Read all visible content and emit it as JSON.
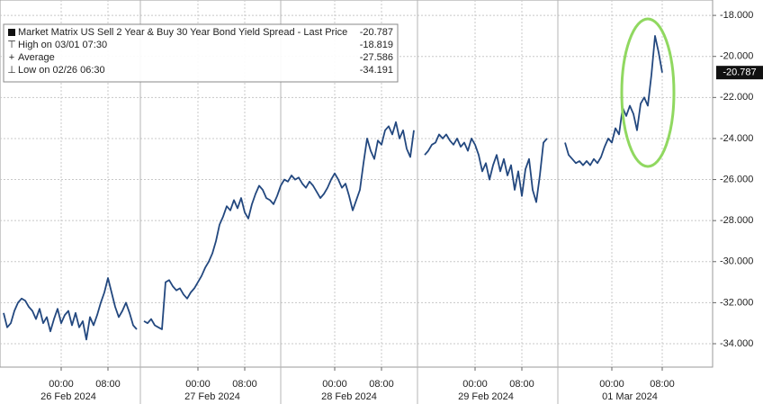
{
  "chart_data": {
    "type": "line",
    "legend": [
      {
        "label": "Market Matrix US Sell 2 Year & Buy 30 Year Bond Yield Spread - Last Price",
        "value": -20.787
      },
      {
        "label": "High on 03/01 07:30",
        "value": -18.819
      },
      {
        "label": "Average",
        "value": -27.586
      },
      {
        "label": "Low on 02/26 06:30",
        "value": -34.191
      }
    ],
    "x": [
      1,
      2,
      3,
      4,
      5,
      6,
      7,
      8,
      9,
      10,
      11,
      12,
      13,
      14,
      15,
      16,
      17,
      18,
      19,
      20,
      21,
      22,
      23,
      24,
      25,
      26,
      27,
      28,
      29,
      30,
      31,
      32,
      33,
      34,
      35,
      36,
      37,
      38,
      39,
      40,
      41,
      42,
      43,
      44,
      45,
      46,
      47,
      48,
      49,
      50,
      51,
      52,
      53,
      54,
      55,
      56,
      57,
      58,
      59,
      60,
      61,
      62,
      63,
      64,
      65,
      66,
      67,
      68,
      69,
      70,
      71,
      72,
      73,
      74,
      75,
      76,
      77,
      78,
      79,
      80,
      81,
      82,
      83,
      84,
      85,
      86,
      87,
      88,
      89,
      90,
      91,
      92,
      93,
      94,
      95,
      96,
      97,
      98,
      99,
      100,
      101,
      102,
      103,
      104,
      105,
      106,
      107,
      108,
      109,
      110,
      111,
      112,
      113,
      114,
      115,
      116,
      117,
      118,
      119,
      120,
      121,
      122,
      123,
      124,
      125,
      126,
      127,
      128,
      129,
      130,
      131,
      132,
      133,
      134,
      135,
      136,
      137,
      138,
      139,
      140,
      141,
      142,
      143,
      144,
      145,
      146,
      147,
      148,
      149,
      150,
      151,
      152,
      153,
      154,
      155,
      156,
      157,
      158,
      159,
      160,
      161,
      162,
      163,
      164,
      165,
      166,
      167,
      168,
      169,
      170,
      171,
      172,
      173,
      174,
      175,
      176,
      177,
      178,
      179,
      180,
      181,
      182,
      183,
      184
    ],
    "series": [
      {
        "color": "#23487f",
        "values": [
          -32.5,
          -33.2,
          -33.0,
          -32.4,
          -32.0,
          -31.8,
          -31.9,
          -32.2,
          -32.4,
          -32.8,
          -32.3,
          -33.0,
          -32.7,
          -33.4,
          -32.8,
          -32.3,
          -33.0,
          -32.6,
          -32.4,
          -33.1,
          -32.5,
          -33.2,
          -32.9,
          -33.8,
          -32.7,
          -33.1,
          -32.6,
          -32.0,
          -31.5,
          -30.8,
          -31.5,
          -32.2,
          -32.7,
          -32.4,
          -32.0,
          -32.5,
          -33.1,
          -33.3,
          null,
          -32.9,
          -33.0,
          -32.8,
          -33.1,
          -33.2,
          -33.3,
          -31.0,
          -30.9,
          -31.2,
          -31.4,
          -31.3,
          -31.6,
          -31.8,
          -31.5,
          -31.3,
          -31.0,
          -30.7,
          -30.3,
          -30.0,
          -29.6,
          -29.0,
          -28.2,
          -27.8,
          -27.3,
          -27.5,
          -27.0,
          -27.4,
          -26.9,
          -27.6,
          -27.9,
          -27.2,
          -26.7,
          -26.3,
          -26.5,
          -26.9,
          -27.0,
          -27.2,
          -26.8,
          -26.3,
          -26.0,
          -26.1,
          -25.8,
          -26.0,
          -25.9,
          -26.2,
          -26.4,
          -26.1,
          -26.3,
          -26.6,
          -26.9,
          -26.7,
          -26.4,
          -26.0,
          -25.7,
          -26.0,
          -26.4,
          -26.2,
          -26.8,
          -27.5,
          -27.0,
          -26.5,
          -25.2,
          -24.0,
          -24.6,
          -25.0,
          -24.1,
          -24.3,
          -23.6,
          -23.4,
          -23.8,
          -23.2,
          -24.0,
          -23.6,
          -24.5,
          -24.9,
          -23.6,
          null,
          null,
          -24.8,
          -24.6,
          -24.3,
          -24.2,
          -23.8,
          -24.0,
          -23.8,
          -24.1,
          -24.3,
          -24.0,
          -24.4,
          -24.2,
          -24.6,
          -24.0,
          -24.3,
          -24.8,
          -25.6,
          -25.2,
          -26.0,
          -25.3,
          -24.8,
          -25.6,
          -25.0,
          -25.8,
          -25.3,
          -26.5,
          -25.6,
          -26.8,
          -25.5,
          -25.0,
          -26.5,
          -27.1,
          -25.8,
          -24.2,
          -24.0,
          null,
          null,
          null,
          null,
          -24.2,
          -24.8,
          -25.0,
          -25.2,
          -25.1,
          -25.3,
          -25.1,
          -25.3,
          -25.0,
          -25.2,
          -24.9,
          -24.4,
          -24.0,
          -24.2,
          -23.5,
          -23.8,
          -22.5,
          -22.9,
          -22.4,
          -22.8,
          -23.6,
          -22.3,
          -22.0,
          -22.4,
          -20.9,
          -19.0,
          -19.8,
          -20.787
        ]
      }
    ],
    "xlim": [
      0,
      198
    ],
    "xticks": [
      {
        "value": 17,
        "label": "00:00"
      },
      {
        "value": 30,
        "label": "08:00"
      },
      {
        "value": 55,
        "label": "00:00"
      },
      {
        "value": 68,
        "label": "08:00"
      },
      {
        "value": 93,
        "label": "00:00"
      },
      {
        "value": 106,
        "label": "08:00"
      },
      {
        "value": 132,
        "label": "00:00"
      },
      {
        "value": 145,
        "label": "08:00"
      },
      {
        "value": 170,
        "label": "00:00"
      },
      {
        "value": 184,
        "label": "08:00"
      }
    ],
    "xgroups": [
      {
        "value": 19,
        "label": "26 Feb 2024"
      },
      {
        "value": 59,
        "label": "27 Feb 2024"
      },
      {
        "value": 97,
        "label": "28 Feb 2024"
      },
      {
        "value": 135,
        "label": "29 Feb 2024"
      },
      {
        "value": 175,
        "label": "01 Mar 2024"
      }
    ],
    "ylim": [
      -35.14,
      -17.25
    ],
    "yticks": [
      {
        "value": -18,
        "label": "-18.000"
      },
      {
        "value": -20,
        "label": "-20.000"
      },
      {
        "value": -22,
        "label": "-22.000"
      },
      {
        "value": -24,
        "label": "-24.000"
      },
      {
        "value": -26,
        "label": "-26.000"
      },
      {
        "value": -28,
        "label": "-28.000"
      },
      {
        "value": -30,
        "label": "-30.000"
      },
      {
        "value": -32,
        "label": "-32.000"
      },
      {
        "value": -34,
        "label": "-34.000"
      }
    ],
    "grid": true
  }
}
